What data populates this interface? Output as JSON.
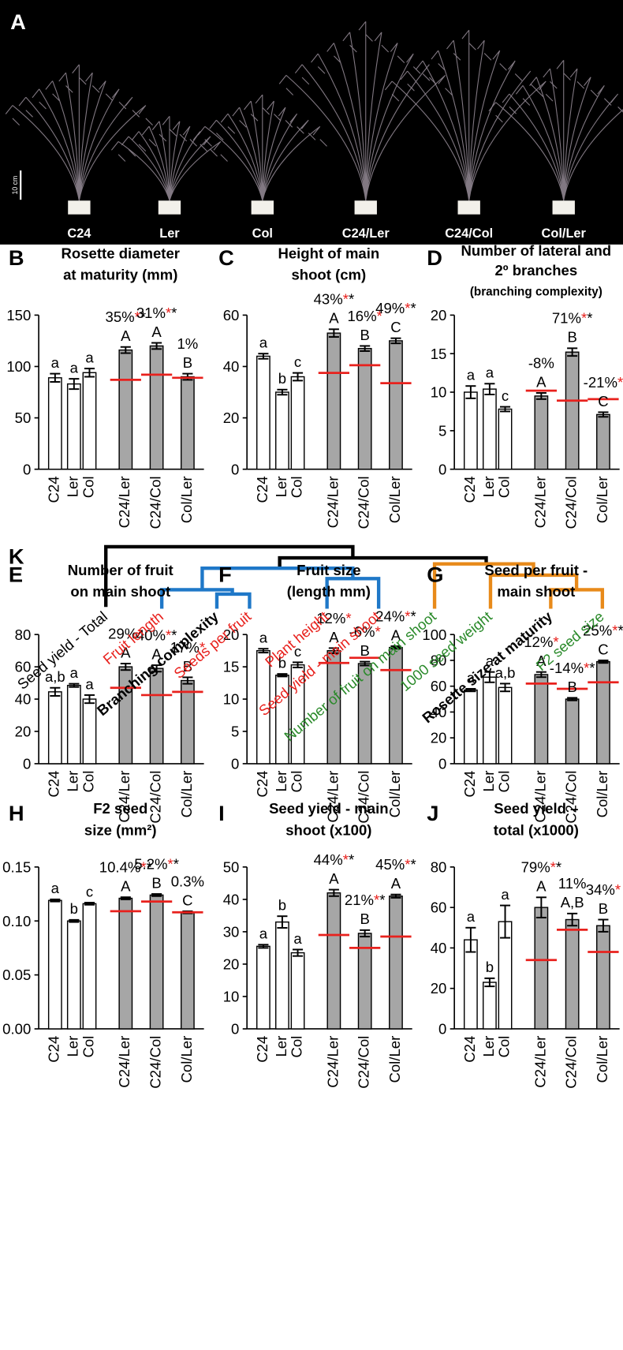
{
  "photo": {
    "panel": "A",
    "scale_bar": "10 cm",
    "labels": [
      "C24",
      "Ler",
      "Col",
      "C24/Ler",
      "C24/Col",
      "Col/Ler"
    ]
  },
  "chart_data": [
    {
      "type": "bar",
      "panel": "B",
      "title": [
        "Rosette diameter",
        "at maturity (mm)"
      ],
      "categories": [
        "C24",
        "Ler",
        "Col",
        "C24/Ler",
        "C24/Col",
        "Col/Ler"
      ],
      "values": [
        89,
        83,
        94,
        116,
        120,
        90
      ],
      "errors": [
        4,
        5,
        4,
        3,
        3,
        3
      ],
      "colors": [
        "#ffffff",
        "#ffffff",
        "#ffffff",
        "#a6a6a6",
        "#a6a6a6",
        "#a6a6a6"
      ],
      "letters": [
        "a",
        "a",
        "a",
        "A",
        "A",
        "B"
      ],
      "midparent": [
        null,
        null,
        null,
        87,
        92,
        89
      ],
      "percent": [
        null,
        null,
        null,
        "35%",
        "31%",
        "1%"
      ],
      "red_stars": [
        null,
        null,
        null,
        "*",
        "*",
        null
      ],
      "black_stars": [
        null,
        null,
        null,
        "*",
        "*",
        null
      ],
      "ylim": [
        0,
        150
      ],
      "yticks": [
        0,
        50,
        100,
        150
      ]
    },
    {
      "type": "bar",
      "panel": "C",
      "title": [
        "Height of main",
        "shoot (cm)"
      ],
      "categories": [
        "C24",
        "Ler",
        "Col",
        "C24/Ler",
        "C24/Col",
        "Col/Ler"
      ],
      "values": [
        44,
        30,
        36,
        53,
        47,
        50
      ],
      "errors": [
        1,
        1,
        1.5,
        1.5,
        1,
        1
      ],
      "colors": [
        "#ffffff",
        "#ffffff",
        "#ffffff",
        "#a6a6a6",
        "#a6a6a6",
        "#a6a6a6"
      ],
      "letters": [
        "a",
        "b",
        "c",
        "A",
        "B",
        "C"
      ],
      "midparent": [
        null,
        null,
        null,
        37.5,
        40.5,
        33.5
      ],
      "percent": [
        null,
        null,
        null,
        "43%",
        "16%",
        "49%"
      ],
      "red_stars": [
        null,
        null,
        null,
        "*",
        "*",
        "*"
      ],
      "black_stars": [
        null,
        null,
        null,
        "*",
        null,
        "*"
      ],
      "ylim": [
        0,
        60
      ],
      "yticks": [
        0,
        20,
        40,
        60
      ]
    },
    {
      "type": "bar",
      "panel": "D",
      "title": [
        "Number of  lateral and",
        "2º branches"
      ],
      "subtitle": "(branching complexity)",
      "categories": [
        "C24",
        "Ler",
        "Col",
        "C24/Ler",
        "C24/Col",
        "Col/Ler"
      ],
      "values": [
        10,
        10.4,
        7.8,
        9.5,
        15.2,
        7.1
      ],
      "errors": [
        0.8,
        0.7,
        0.3,
        0.4,
        0.5,
        0.3
      ],
      "colors": [
        "#ffffff",
        "#ffffff",
        "#ffffff",
        "#a6a6a6",
        "#a6a6a6",
        "#a6a6a6"
      ],
      "letters": [
        "a",
        "a",
        "c",
        "A",
        "B",
        "C"
      ],
      "midparent": [
        null,
        null,
        null,
        10.2,
        8.9,
        9.1
      ],
      "percent": [
        null,
        null,
        null,
        "-8%",
        "71%",
        "-21%"
      ],
      "red_stars": [
        null,
        null,
        null,
        null,
        "*",
        "*"
      ],
      "black_stars": [
        null,
        null,
        null,
        null,
        "*",
        null
      ],
      "ylim": [
        0,
        20
      ],
      "yticks": [
        0,
        5,
        10,
        15,
        20
      ]
    },
    {
      "type": "bar",
      "panel": "E",
      "title": [
        "Number of fruit",
        "on main shoot"
      ],
      "categories": [
        "C24",
        "Ler",
        "Col",
        "C24/Ler",
        "C24/Col",
        "Col/Ler"
      ],
      "values": [
        44.5,
        48.5,
        40,
        60,
        59,
        51.5
      ],
      "errors": [
        2.5,
        1,
        2.5,
        2,
        2,
        2
      ],
      "colors": [
        "#ffffff",
        "#ffffff",
        "#ffffff",
        "#a6a6a6",
        "#a6a6a6",
        "#a6a6a6"
      ],
      "letters": [
        "a,b",
        "a",
        "a",
        "A",
        "A",
        "B"
      ],
      "midparent": [
        null,
        null,
        null,
        47,
        42.5,
        44.5
      ],
      "percent": [
        null,
        null,
        null,
        "29%",
        "40%",
        "17%"
      ],
      "red_stars": [
        null,
        null,
        null,
        "*",
        "*",
        "*"
      ],
      "black_stars": [
        null,
        null,
        null,
        null,
        "*",
        null
      ],
      "ylim": [
        0,
        80
      ],
      "yticks": [
        0,
        20,
        40,
        60,
        80
      ]
    },
    {
      "type": "bar",
      "panel": "F",
      "title": [
        "Fruit size",
        "(length mm)"
      ],
      "categories": [
        "C24",
        "Ler",
        "Col",
        "C24/Ler",
        "C24/Col",
        "Col/Ler"
      ],
      "values": [
        17.5,
        13.7,
        15.3,
        17.5,
        15.5,
        18
      ],
      "errors": [
        0.3,
        0.2,
        0.4,
        0.4,
        0.3,
        0.2
      ],
      "colors": [
        "#ffffff",
        "#ffffff",
        "#ffffff",
        "#a6a6a6",
        "#a6a6a6",
        "#a6a6a6"
      ],
      "letters": [
        "a",
        "b",
        "c",
        "A",
        "B",
        "A"
      ],
      "midparent": [
        null,
        null,
        null,
        15.6,
        16.4,
        14.5
      ],
      "percent": [
        null,
        null,
        null,
        "12%",
        "-6%",
        "24%"
      ],
      "red_stars": [
        null,
        null,
        null,
        "*",
        "*",
        "*"
      ],
      "black_stars": [
        null,
        null,
        null,
        null,
        null,
        "*"
      ],
      "ylim": [
        0,
        20
      ],
      "yticks": [
        0,
        5,
        10,
        15,
        20
      ]
    },
    {
      "type": "bar",
      "panel": "G",
      "title": [
        "Seed per fruit -",
        "main shoot"
      ],
      "categories": [
        "C24",
        "Ler",
        "Col",
        "C24/Ler",
        "C24/Col",
        "Col/Ler"
      ],
      "values": [
        57,
        67,
        59,
        69,
        50,
        79
      ],
      "errors": [
        1,
        4,
        3,
        2,
        1,
        1
      ],
      "colors": [
        "#ffffff",
        "#ffffff",
        "#ffffff",
        "#a6a6a6",
        "#a6a6a6",
        "#a6a6a6"
      ],
      "letters": [
        "a",
        "a",
        "a,b",
        "A",
        "B",
        "C"
      ],
      "midparent": [
        null,
        null,
        null,
        62,
        58,
        63
      ],
      "percent": [
        null,
        null,
        null,
        "12%",
        "-14%",
        "25%"
      ],
      "red_stars": [
        null,
        null,
        null,
        "*",
        "*",
        "*"
      ],
      "black_stars": [
        null,
        null,
        null,
        null,
        "*",
        "*"
      ],
      "ylim": [
        0,
        100
      ],
      "yticks": [
        0,
        20,
        40,
        60,
        80,
        100
      ]
    },
    {
      "type": "bar",
      "panel": "H",
      "title": [
        "F2 seed",
        "size (mm²)"
      ],
      "categories": [
        "C24",
        "Ler",
        "Col",
        "C24/Ler",
        "C24/Col",
        "Col/Ler"
      ],
      "values": [
        0.119,
        0.1,
        0.116,
        0.121,
        0.124,
        0.108
      ],
      "errors": [
        0.001,
        0.001,
        0.001,
        0.001,
        0.001,
        0.001
      ],
      "colors": [
        "#ffffff",
        "#ffffff",
        "#ffffff",
        "#a6a6a6",
        "#a6a6a6",
        "#a6a6a6"
      ],
      "letters": [
        "a",
        "b",
        "c",
        "A",
        "B",
        "C"
      ],
      "midparent": [
        null,
        null,
        null,
        0.109,
        0.118,
        0.108
      ],
      "percent": [
        null,
        null,
        null,
        "10.4%",
        "5.2%",
        "0.3%"
      ],
      "red_stars": [
        null,
        null,
        null,
        "*",
        "*",
        null
      ],
      "black_stars": [
        null,
        null,
        null,
        "*",
        "*",
        null
      ],
      "ylim": [
        0,
        0.15
      ],
      "yticks": [
        {
          "value": 0,
          "label": "0.00"
        },
        0.05,
        {
          "value": 0.1,
          "label": "0.10"
        },
        0.15
      ]
    },
    {
      "type": "bar",
      "panel": "I",
      "title": [
        "Seed yield - main",
        "shoot (x100)"
      ],
      "categories": [
        "C24",
        "Ler",
        "Col",
        "C24/Ler",
        "C24/Col",
        "Col/Ler"
      ],
      "values": [
        25.5,
        33,
        23.5,
        42,
        29.5,
        41
      ],
      "errors": [
        0.5,
        1.8,
        1,
        1,
        1,
        0.5
      ],
      "colors": [
        "#ffffff",
        "#ffffff",
        "#ffffff",
        "#a6a6a6",
        "#a6a6a6",
        "#a6a6a6"
      ],
      "letters": [
        "a",
        "b",
        "a",
        "A",
        "B",
        "A"
      ],
      "midparent": [
        null,
        null,
        null,
        29,
        25,
        28.5
      ],
      "percent": [
        null,
        null,
        null,
        "44%",
        "21%",
        "45%"
      ],
      "red_stars": [
        null,
        null,
        null,
        "*",
        "*",
        "*"
      ],
      "black_stars": [
        null,
        null,
        null,
        "*",
        "*",
        "*"
      ],
      "ylim": [
        0,
        50
      ],
      "yticks": [
        0,
        10,
        20,
        30,
        40,
        50
      ]
    },
    {
      "type": "bar",
      "panel": "J",
      "title": [
        "Seed yield –",
        "total (x1000)"
      ],
      "categories": [
        "C24",
        "Ler",
        "Col",
        "C24/Ler",
        "C24/Col",
        "Col/Ler"
      ],
      "values": [
        44,
        23,
        53,
        60,
        54,
        51
      ],
      "errors": [
        6,
        2,
        8,
        5,
        3,
        3
      ],
      "colors": [
        "#ffffff",
        "#ffffff",
        "#ffffff",
        "#a6a6a6",
        "#a6a6a6",
        "#a6a6a6"
      ],
      "letters": [
        "a",
        "b",
        "a",
        "A",
        "A,B",
        "B"
      ],
      "midparent": [
        null,
        null,
        null,
        34,
        49,
        38
      ],
      "percent": [
        null,
        null,
        null,
        "79%",
        "11%",
        "34%"
      ],
      "red_stars": [
        null,
        null,
        null,
        "*",
        null,
        "*"
      ],
      "black_stars": [
        null,
        null,
        null,
        "*",
        null,
        null
      ],
      "ylim": [
        0,
        80
      ],
      "yticks": [
        0,
        20,
        40,
        60,
        80
      ]
    }
  ],
  "dendrogram": {
    "panel": "K",
    "leaves": [
      {
        "label": "Seed yield - Total",
        "color": "#000000",
        "bold": false
      },
      {
        "label": "Fruit length",
        "color": "#e8211d",
        "bold": false
      },
      {
        "label": "Branching complexity",
        "color": "#000000",
        "bold": true
      },
      {
        "label": "Seeds per fruit",
        "color": "#e8211d",
        "bold": false
      },
      {
        "label": "Plant height",
        "color": "#e8211d",
        "bold": false
      },
      {
        "label": "Seed yield - main shoot",
        "color": "#e8211d",
        "bold": false
      },
      {
        "label": "Number of fruit on main shoot",
        "color": "#2a8a2a",
        "bold": false
      },
      {
        "label": "1000 seed weight",
        "color": "#2a8a2a",
        "bold": false
      },
      {
        "label": "Rosette size at maturity",
        "color": "#000000",
        "bold": true
      },
      {
        "label": "F2 seed size",
        "color": "#2a8a2a",
        "bold": false
      }
    ]
  }
}
